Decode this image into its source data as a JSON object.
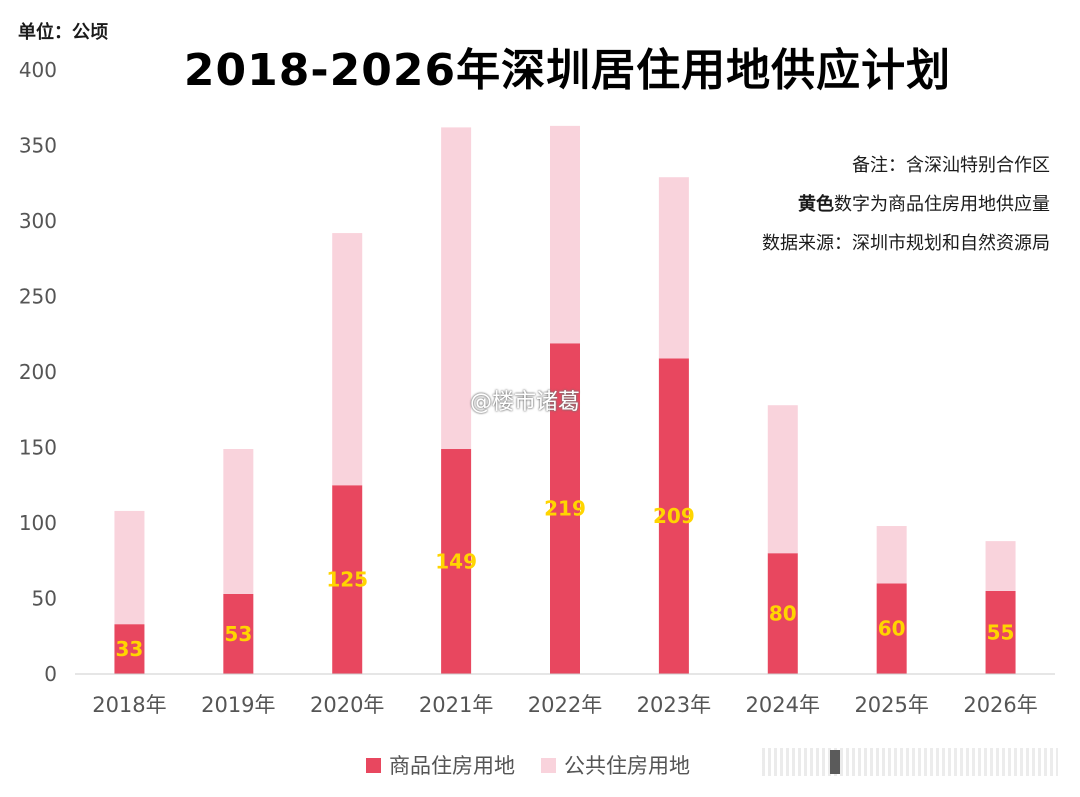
{
  "unit_label": "单位：公顷",
  "watermark": "@楼市诸葛",
  "notes": {
    "line1": "备注：含深汕特别合作区",
    "line2_emph": "黄色",
    "line2_rest": "数字为商品住房用地供应量",
    "line3": "数据来源：深圳市规划和自然资源局"
  },
  "colors": {
    "commercial": "#e8475f",
    "public": "#f9d3dc",
    "data_label": "#ffd500",
    "axis_text": "#555555",
    "baseline": "#cccccc"
  },
  "chart_data": {
    "type": "bar",
    "stacked": true,
    "title": "2018-2026年深圳居住用地供应计划",
    "ylabel": "",
    "xlabel": "",
    "ylim": [
      0,
      400
    ],
    "yticks": [
      0,
      50,
      100,
      150,
      200,
      250,
      300,
      350,
      400
    ],
    "grid": false,
    "legend_position": "bottom",
    "categories": [
      "2018年",
      "2019年",
      "2020年",
      "2021年",
      "2022年",
      "2023年",
      "2024年",
      "2025年",
      "2026年"
    ],
    "series": [
      {
        "name": "商品住房用地",
        "values": [
          33,
          53,
          125,
          149,
          219,
          209,
          80,
          60,
          55
        ],
        "labels": [
          "33",
          "53",
          "125",
          "149",
          "219",
          "209",
          "80",
          "60",
          "55"
        ]
      },
      {
        "name": "公共住房用地",
        "values": [
          75,
          96,
          167,
          213,
          144,
          120,
          98,
          38,
          33
        ]
      }
    ]
  }
}
